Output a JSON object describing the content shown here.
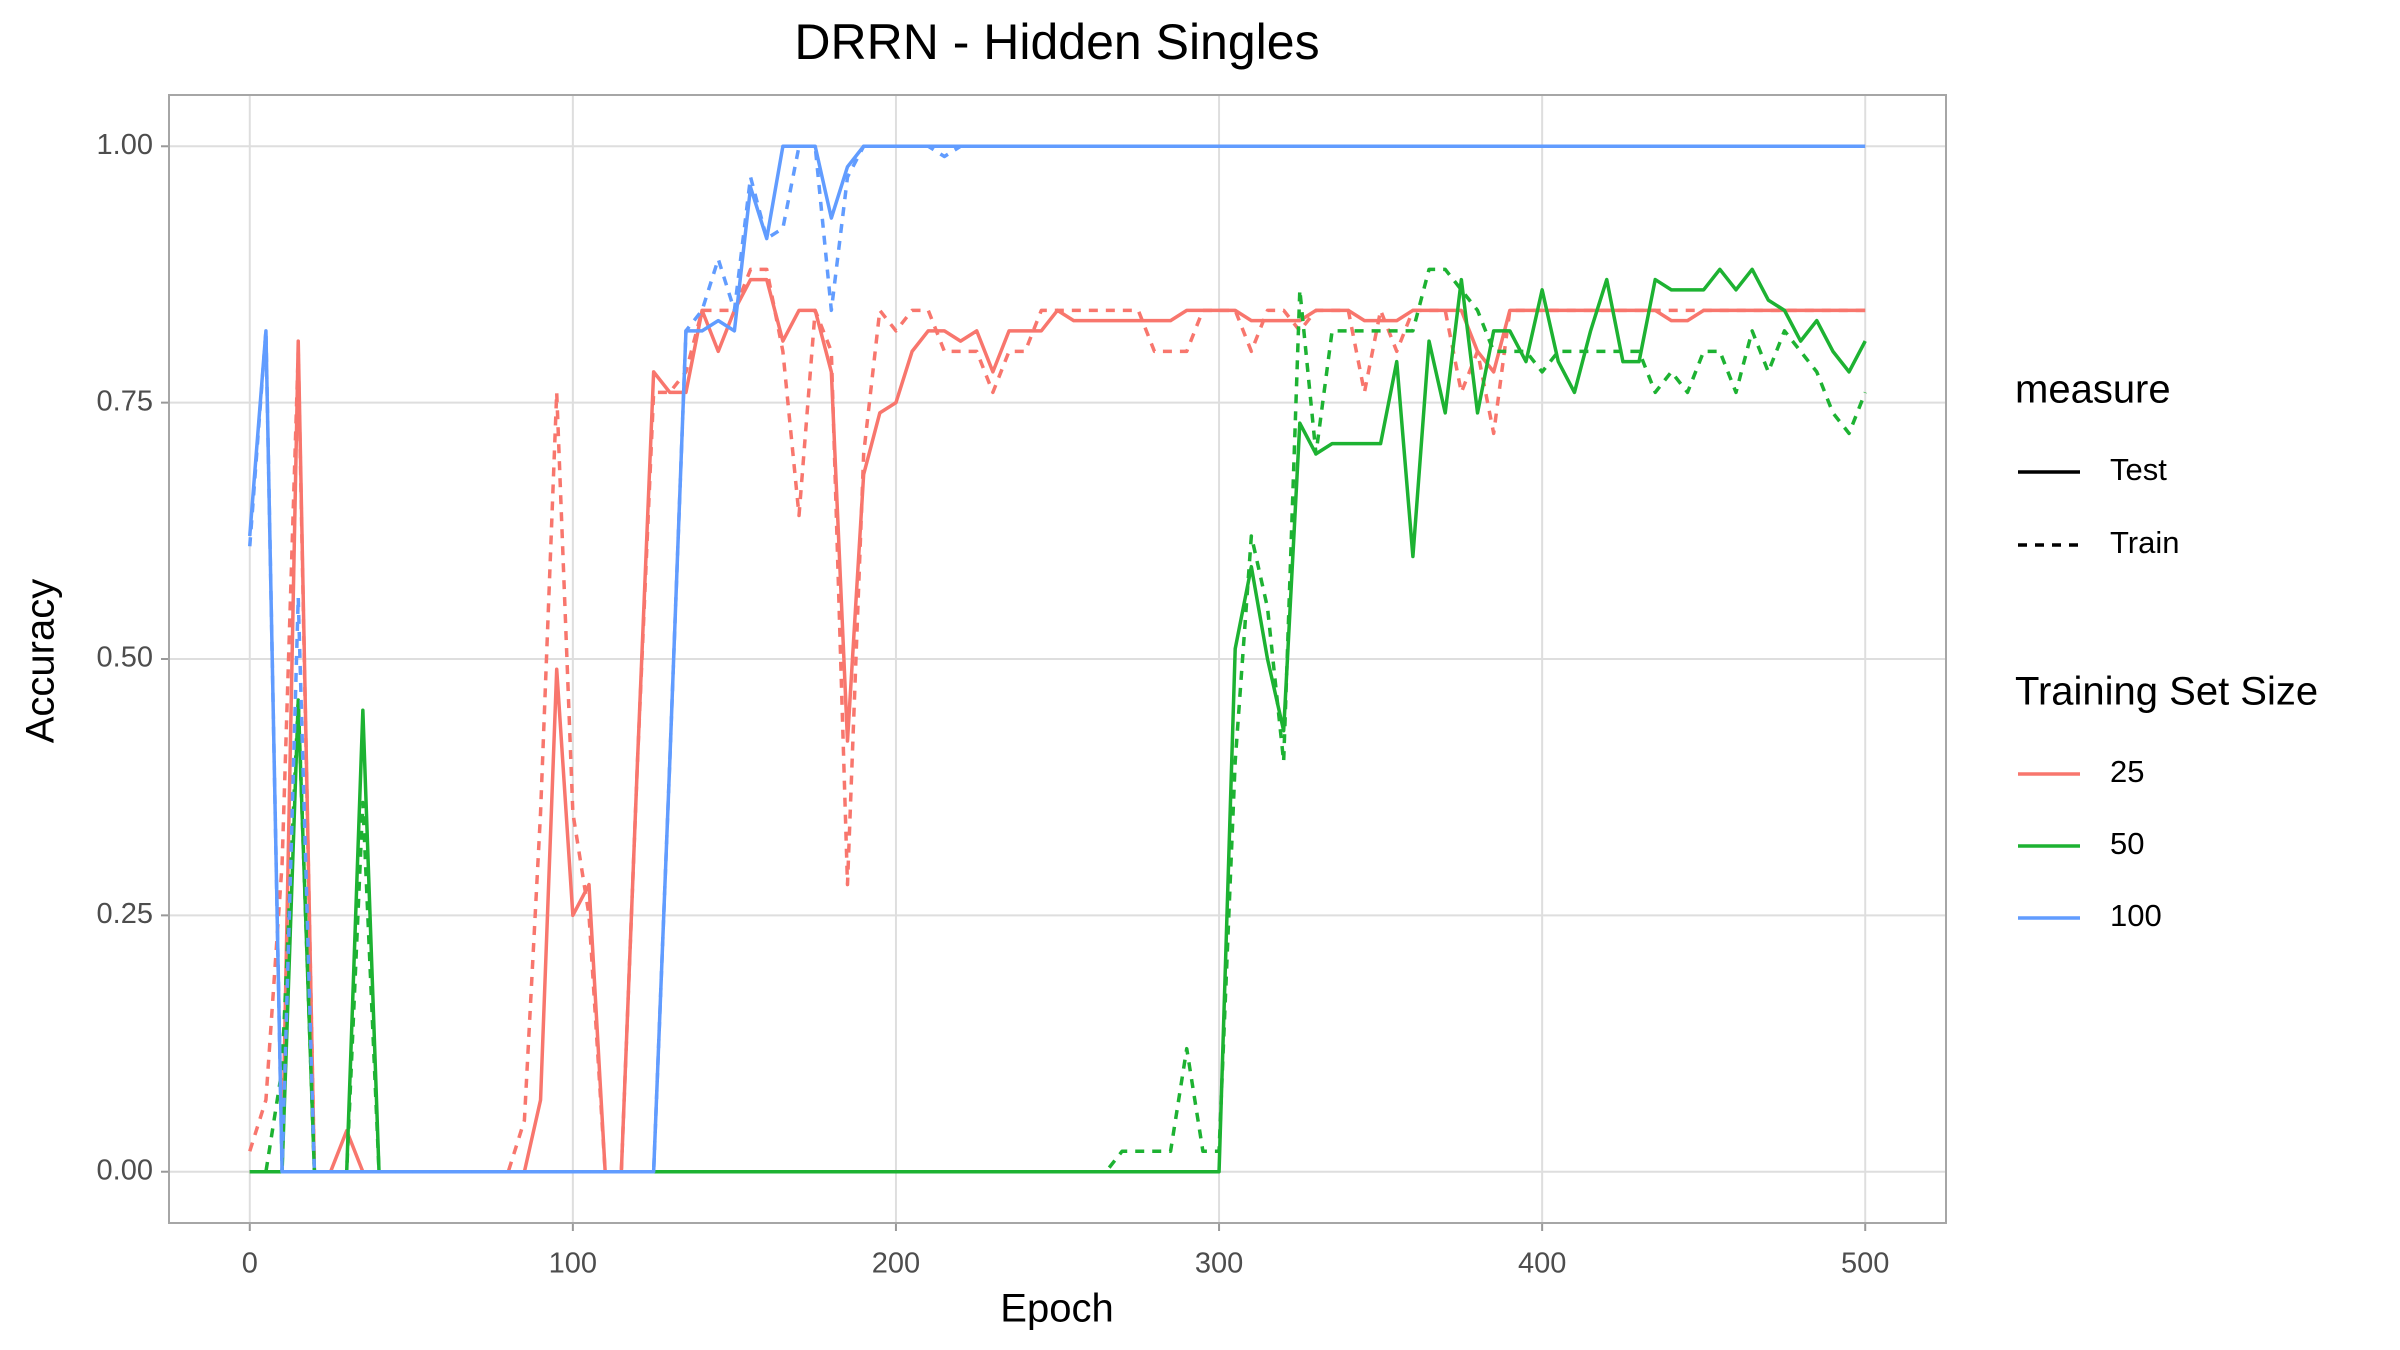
{
  "chart_data": {
    "type": "line",
    "title": "DRRN - Hidden Singles",
    "x_label": "Epoch",
    "y_label": "Accuracy",
    "x": [
      0,
      5,
      10,
      15,
      20,
      25,
      30,
      35,
      40,
      45,
      50,
      55,
      60,
      65,
      70,
      75,
      80,
      85,
      90,
      95,
      100,
      105,
      110,
      115,
      120,
      125,
      130,
      135,
      140,
      145,
      150,
      155,
      160,
      165,
      170,
      175,
      180,
      185,
      190,
      195,
      200,
      205,
      210,
      215,
      220,
      225,
      230,
      235,
      240,
      245,
      250,
      255,
      260,
      265,
      270,
      275,
      280,
      285,
      290,
      295,
      300,
      305,
      310,
      315,
      320,
      325,
      330,
      335,
      340,
      345,
      350,
      355,
      360,
      365,
      370,
      375,
      380,
      385,
      390,
      395,
      400,
      405,
      410,
      415,
      420,
      425,
      430,
      435,
      440,
      445,
      450,
      455,
      460,
      465,
      470,
      475,
      480,
      485,
      490,
      495,
      500
    ],
    "xlim": [
      -25,
      525
    ],
    "xticks": [
      0,
      100,
      200,
      300,
      400,
      500
    ],
    "ylim": [
      -0.05,
      1.05
    ],
    "yticks": [
      {
        "value": 0,
        "label": "0.00"
      },
      {
        "value": 0.25,
        "label": "0.25"
      },
      {
        "value": 0.5,
        "label": "0.50"
      },
      {
        "value": 0.75,
        "label": "0.75"
      },
      {
        "value": 1,
        "label": "1.00"
      }
    ],
    "grid": true,
    "legend_position": "right",
    "measure_legend": {
      "title": "measure",
      "items": [
        {
          "name": "Test",
          "dash": "solid"
        },
        {
          "name": "Train",
          "dash": "dashed"
        }
      ]
    },
    "legend_title": "Training Set Size",
    "series": [
      {
        "name": "25",
        "color": "#F8766D",
        "values": [
          [
            0,
            0,
            0,
            0.81,
            0,
            0,
            0.04,
            0,
            0,
            0,
            0,
            0,
            0,
            0,
            0,
            0,
            0,
            0,
            0.07,
            0.49,
            0.25,
            0.28,
            0,
            0,
            0.4,
            0.78,
            0.76,
            0.76,
            0.84,
            0.8,
            0.84,
            0.87,
            0.87,
            0.81,
            0.84,
            0.84,
            0.78,
            0.42,
            0.68,
            0.74,
            0.75,
            0.8,
            0.82,
            0.82,
            0.81,
            0.82,
            0.78,
            0.82,
            0.82,
            0.82,
            0.84,
            0.83,
            0.83,
            0.83,
            0.83,
            0.83,
            0.83,
            0.83,
            0.84,
            0.84,
            0.84,
            0.84,
            0.83,
            0.83,
            0.83,
            0.83,
            0.84,
            0.84,
            0.84,
            0.83,
            0.83,
            0.83,
            0.84,
            0.84,
            0.84,
            0.84,
            0.8,
            0.78,
            0.84,
            0.84,
            0.84,
            0.84,
            0.84,
            0.84,
            0.84,
            0.84,
            0.84,
            0.84,
            0.83,
            0.83,
            0.84,
            0.84,
            0.84,
            0.84,
            0.84,
            0.84,
            0.84,
            0.84,
            0.84,
            0.84,
            0.84
          ],
          [
            0.02,
            0.07,
            0.3,
            0.8,
            0,
            0,
            0,
            0,
            0,
            0,
            0,
            0,
            0,
            0,
            0,
            0,
            0,
            0.05,
            0.35,
            0.76,
            0.35,
            0.25,
            0,
            0,
            0.4,
            0.76,
            0.76,
            0.78,
            0.84,
            0.84,
            0.84,
            0.88,
            0.88,
            0.8,
            0.64,
            0.84,
            0.8,
            0.28,
            0.7,
            0.84,
            0.82,
            0.84,
            0.84,
            0.8,
            0.8,
            0.8,
            0.76,
            0.8,
            0.8,
            0.84,
            0.84,
            0.84,
            0.84,
            0.84,
            0.84,
            0.84,
            0.8,
            0.8,
            0.8,
            0.84,
            0.84,
            0.84,
            0.8,
            0.84,
            0.84,
            0.82,
            0.84,
            0.84,
            0.84,
            0.76,
            0.84,
            0.8,
            0.84,
            0.84,
            0.84,
            0.76,
            0.8,
            0.72,
            0.84,
            0.84,
            0.84,
            0.84,
            0.84,
            0.84,
            0.84,
            0.84,
            0.84,
            0.84,
            0.84,
            0.84,
            0.84,
            0.84,
            0.84,
            0.84,
            0.84,
            0.84,
            0.84,
            0.84,
            0.84,
            0.84,
            0.84
          ]
        ]
      },
      {
        "name": "50",
        "color": "#1DB232",
        "values": [
          [
            0,
            0,
            0,
            0.46,
            0,
            0,
            0,
            0.45,
            0,
            0,
            0,
            0,
            0,
            0,
            0,
            0,
            0,
            0,
            0,
            0,
            0,
            0,
            0,
            0,
            0,
            0,
            0,
            0,
            0,
            0,
            0,
            0,
            0,
            0,
            0,
            0,
            0,
            0,
            0,
            0,
            0,
            0,
            0,
            0,
            0,
            0,
            0,
            0,
            0,
            0,
            0,
            0,
            0,
            0,
            0,
            0,
            0,
            0,
            0,
            0,
            0,
            0.51,
            0.59,
            0.5,
            0.43,
            0.73,
            0.7,
            0.71,
            0.71,
            0.71,
            0.71,
            0.79,
            0.6,
            0.81,
            0.74,
            0.87,
            0.74,
            0.82,
            0.82,
            0.79,
            0.86,
            0.79,
            0.76,
            0.82,
            0.87,
            0.79,
            0.79,
            0.87,
            0.86,
            0.86,
            0.86,
            0.88,
            0.86,
            0.88,
            0.85,
            0.84,
            0.81,
            0.83,
            0.8,
            0.78,
            0.81
          ],
          [
            0,
            0,
            0.1,
            0.46,
            0,
            0,
            0,
            0.36,
            0,
            0,
            0,
            0,
            0,
            0,
            0,
            0,
            0,
            0,
            0,
            0,
            0,
            0,
            0,
            0,
            0,
            0,
            0,
            0,
            0,
            0,
            0,
            0,
            0,
            0,
            0,
            0,
            0,
            0,
            0,
            0,
            0,
            0,
            0,
            0,
            0,
            0,
            0,
            0,
            0,
            0,
            0,
            0,
            0,
            0,
            0.02,
            0.02,
            0.02,
            0.02,
            0.12,
            0.02,
            0.02,
            0.4,
            0.62,
            0.55,
            0.4,
            0.86,
            0.7,
            0.82,
            0.82,
            0.82,
            0.82,
            0.82,
            0.82,
            0.88,
            0.88,
            0.86,
            0.84,
            0.8,
            0.8,
            0.8,
            0.78,
            0.8,
            0.8,
            0.8,
            0.8,
            0.8,
            0.8,
            0.76,
            0.78,
            0.76,
            0.8,
            0.8,
            0.76,
            0.82,
            0.78,
            0.82,
            0.8,
            0.78,
            0.74,
            0.72,
            0.76
          ]
        ]
      },
      {
        "name": "100",
        "color": "#619CFF",
        "values": [
          [
            0.62,
            0.82,
            0,
            0,
            0,
            0,
            0,
            0,
            0,
            0,
            0,
            0,
            0,
            0,
            0,
            0,
            0,
            0,
            0,
            0,
            0,
            0,
            0,
            0,
            0,
            0,
            0.4,
            0.82,
            0.82,
            0.83,
            0.82,
            0.96,
            0.91,
            1,
            1,
            1,
            0.93,
            0.98,
            1,
            1,
            1,
            1,
            1,
            1,
            1,
            1,
            1,
            1,
            1,
            1,
            1,
            1,
            1,
            1,
            1,
            1,
            1,
            1,
            1,
            1,
            1,
            1,
            1,
            1,
            1,
            1,
            1,
            1,
            1,
            1,
            1,
            1,
            1,
            1,
            1,
            1,
            1,
            1,
            1,
            1,
            1,
            1,
            1,
            1,
            1,
            1,
            1,
            1,
            1,
            1,
            1,
            1,
            1,
            1,
            1,
            1,
            1,
            1,
            1,
            1,
            1
          ],
          [
            0.61,
            0.82,
            0,
            0.56,
            0,
            0,
            0,
            0,
            0,
            0,
            0,
            0,
            0,
            0,
            0,
            0,
            0,
            0,
            0,
            0,
            0,
            0,
            0,
            0,
            0,
            0,
            0.4,
            0.82,
            0.84,
            0.89,
            0.84,
            0.97,
            0.91,
            0.92,
            1,
            1,
            0.84,
            0.97,
            1,
            1,
            1,
            1,
            1,
            0.99,
            1,
            1,
            1,
            1,
            1,
            1,
            1,
            1,
            1,
            1,
            1,
            1,
            1,
            1,
            1,
            1,
            1,
            1,
            1,
            1,
            1,
            1,
            1,
            1,
            1,
            1,
            1,
            1,
            1,
            1,
            1,
            1,
            1,
            1,
            1,
            1,
            1,
            1,
            1,
            1,
            1,
            1,
            1,
            1,
            1,
            1,
            1,
            1,
            1,
            1,
            1,
            1,
            1,
            1,
            1,
            1,
            1
          ]
        ]
      }
    ]
  }
}
